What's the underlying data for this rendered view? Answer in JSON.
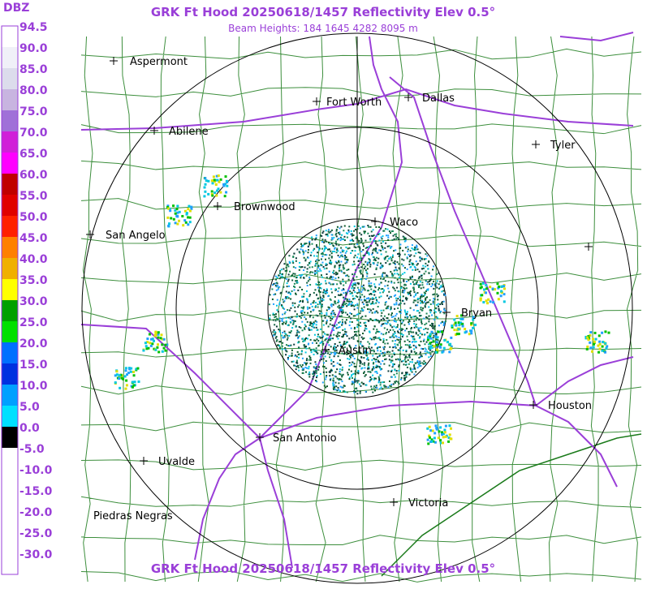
{
  "header": {
    "title": "GRK Ft Hood 20250618/1457 Reflectivity Elev 0.5°",
    "subtitle": "Beam Heights: 184 1645 4282 8095 m",
    "footer": "GRK Ft Hood 20250618/1457 Reflectivity Elev 0.5°"
  },
  "legend": {
    "title": "DBZ",
    "labels": [
      "94.5",
      "90.0",
      "85.0",
      "80.0",
      "75.0",
      "70.0",
      "65.0",
      "60.0",
      "55.0",
      "50.0",
      "45.0",
      "40.0",
      "35.0",
      "30.0",
      "25.0",
      "20.0",
      "15.0",
      "10.0",
      "5.0",
      "0.0",
      "-5.0",
      "-10.0",
      "-15.0",
      "-20.0",
      "-25.0",
      "-30.0"
    ],
    "colors": [
      "#ffffff",
      "#f0f0f8",
      "#dcdcec",
      "#c8b4e0",
      "#a070d8",
      "#d020d8",
      "#ff00ff",
      "#c00000",
      "#e00000",
      "#ff2000",
      "#ff8000",
      "#f0b000",
      "#ffff00",
      "#00a000",
      "#00e000",
      "#0070ff",
      "#0030e0",
      "#00a0ff",
      "#00e0ff",
      "#000000",
      "#ffffff",
      "#ffffff",
      "#ffffff",
      "#ffffff",
      "#ffffff",
      "#ffffff"
    ]
  },
  "cities": [
    "Aspermont",
    "Abilene",
    "Fort Worth",
    "Dallas",
    "Tyler",
    "Brownwood",
    "Waco",
    "San Angelo",
    "Bryan",
    "Austin",
    "Houston",
    "San Antonio",
    "Uvalde",
    "Victoria",
    "Piedras Negras"
  ]
}
